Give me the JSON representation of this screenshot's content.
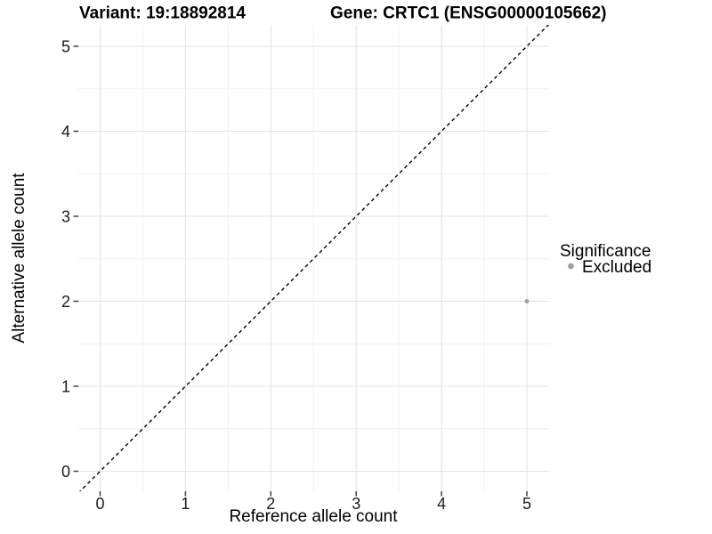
{
  "header": {
    "variant_title": "Variant: 19:18892814",
    "gene_title": "Gene: CRTC1 (ENSG00000105662)"
  },
  "chart_data": {
    "type": "scatter",
    "xlabel": "Reference allele count",
    "ylabel": "Alternative allele count",
    "xlim": [
      -0.25,
      5.25
    ],
    "ylim": [
      -0.25,
      5.25
    ],
    "x_ticks": [
      0,
      1,
      2,
      3,
      4,
      5
    ],
    "y_ticks": [
      0,
      1,
      2,
      3,
      4,
      5
    ],
    "minor_breaks": [
      0.5,
      1.5,
      2.5,
      3.5,
      4.5
    ],
    "grid": true,
    "points": [
      {
        "x": 5,
        "y": 2,
        "significance": "Excluded"
      }
    ],
    "identity_line": {
      "slope": 1,
      "intercept": 0,
      "linetype": "dashed",
      "color": "#000000"
    },
    "legend": {
      "title": "Significance",
      "position": "right",
      "entries": [
        {
          "label": "Excluded",
          "color": "#a0a0a0",
          "marker": "circle"
        }
      ]
    },
    "colors": {
      "point_excluded": "#a0a0a0",
      "grid_major": "#e3e3e3",
      "grid_minor": "#f0f0f0",
      "axis": "#404040",
      "text": "#000000"
    }
  }
}
